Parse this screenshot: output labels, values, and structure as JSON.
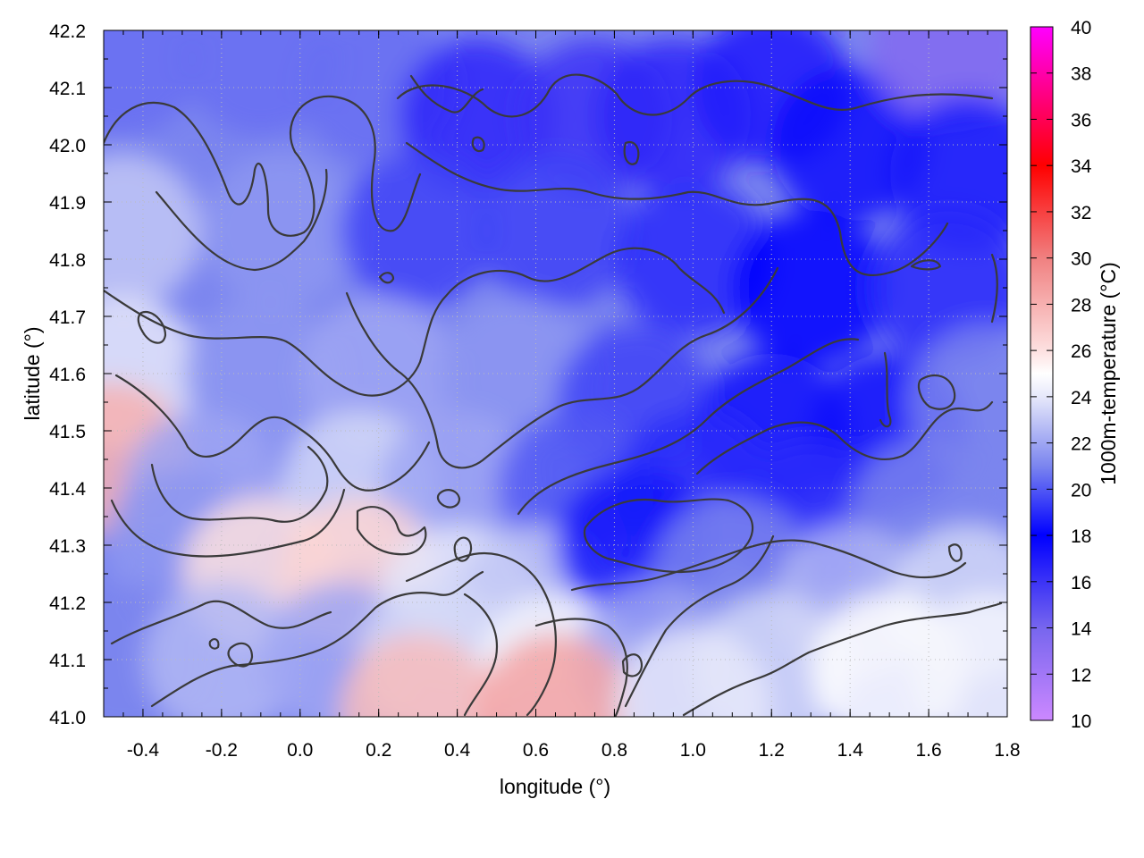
{
  "chart_data": {
    "type": "heatmap",
    "title": "",
    "xlabel": "longitude (°)",
    "ylabel": "latitude (°)",
    "colorbar_label": "1000m-temperature (°C)",
    "xlim": [
      -0.5,
      1.8
    ],
    "ylim": [
      41.0,
      42.2
    ],
    "clim": [
      10,
      40
    ],
    "x_ticks": [
      "-0.4",
      "-0.2",
      "0.0",
      "0.2",
      "0.4",
      "0.6",
      "0.8",
      "1.0",
      "1.2",
      "1.4",
      "1.6",
      "1.8"
    ],
    "x_tick_values": [
      -0.4,
      -0.2,
      0.0,
      0.2,
      0.4,
      0.6,
      0.8,
      1.0,
      1.2,
      1.4,
      1.6,
      1.8
    ],
    "y_ticks": [
      "41.0",
      "41.1",
      "41.2",
      "41.3",
      "41.4",
      "41.5",
      "41.6",
      "41.7",
      "41.8",
      "41.9",
      "42.0",
      "42.1",
      "42.2"
    ],
    "y_tick_values": [
      41.0,
      41.1,
      41.2,
      41.3,
      41.4,
      41.5,
      41.6,
      41.7,
      41.8,
      41.9,
      42.0,
      42.1,
      42.2
    ],
    "colorbar_ticks": [
      "10",
      "12",
      "14",
      "16",
      "18",
      "20",
      "22",
      "24",
      "26",
      "28",
      "30",
      "32",
      "34",
      "36",
      "38",
      "40"
    ],
    "colorbar_tick_values": [
      10,
      12,
      14,
      16,
      18,
      20,
      22,
      24,
      26,
      28,
      30,
      32,
      34,
      36,
      38,
      40
    ],
    "colormap_stops": [
      {
        "value": 10,
        "color": "#cc88ff"
      },
      {
        "value": 14,
        "color": "#7766ee"
      },
      {
        "value": 18,
        "color": "#0000ff"
      },
      {
        "value": 21,
        "color": "#7b85ef"
      },
      {
        "value": 24,
        "color": "#e6e8fa"
      },
      {
        "value": 25,
        "color": "#ffffff"
      },
      {
        "value": 26,
        "color": "#fde0e0"
      },
      {
        "value": 30,
        "color": "#f08080"
      },
      {
        "value": 34,
        "color": "#ff0000"
      },
      {
        "value": 40,
        "color": "#ff00ff"
      }
    ],
    "grid": true,
    "temperature_samples": [
      {
        "lon": -0.45,
        "lat": 42.15,
        "t": 20.5
      },
      {
        "lon": -0.1,
        "lat": 42.15,
        "t": 20.5
      },
      {
        "lon": 0.2,
        "lat": 42.1,
        "t": 20.5
      },
      {
        "lon": 0.45,
        "lat": 42.05,
        "t": 16.5
      },
      {
        "lon": 0.75,
        "lat": 42.05,
        "t": 16.0
      },
      {
        "lon": 0.95,
        "lat": 42.05,
        "t": 16.5
      },
      {
        "lon": 1.2,
        "lat": 42.1,
        "t": 17.0
      },
      {
        "lon": 1.4,
        "lat": 42.0,
        "t": 17.5
      },
      {
        "lon": 1.65,
        "lat": 42.17,
        "t": 13.5
      },
      {
        "lon": 1.7,
        "lat": 41.95,
        "t": 18.5
      },
      {
        "lon": -0.45,
        "lat": 41.85,
        "t": 23.0
      },
      {
        "lon": -0.05,
        "lat": 41.85,
        "t": 21.5
      },
      {
        "lon": 0.3,
        "lat": 41.85,
        "t": 19.5
      },
      {
        "lon": 0.65,
        "lat": 41.85,
        "t": 19.5
      },
      {
        "lon": 1.0,
        "lat": 41.8,
        "t": 19.0
      },
      {
        "lon": 1.3,
        "lat": 41.75,
        "t": 18.0
      },
      {
        "lon": 1.65,
        "lat": 41.75,
        "t": 19.0
      },
      {
        "lon": -0.45,
        "lat": 41.6,
        "t": 24.0
      },
      {
        "lon": -0.1,
        "lat": 41.6,
        "t": 21.5
      },
      {
        "lon": 0.2,
        "lat": 41.6,
        "t": 22.0
      },
      {
        "lon": 0.55,
        "lat": 41.6,
        "t": 21.5
      },
      {
        "lon": 0.85,
        "lat": 41.55,
        "t": 19.5
      },
      {
        "lon": 1.2,
        "lat": 41.5,
        "t": 17.5
      },
      {
        "lon": 1.5,
        "lat": 41.5,
        "t": 17.5
      },
      {
        "lon": 1.75,
        "lat": 41.55,
        "t": 21.0
      },
      {
        "lon": -0.48,
        "lat": 41.45,
        "t": 28.0
      },
      {
        "lon": -0.25,
        "lat": 41.4,
        "t": 22.0
      },
      {
        "lon": 0.15,
        "lat": 41.4,
        "t": 23.5
      },
      {
        "lon": 0.4,
        "lat": 41.4,
        "t": 22.0
      },
      {
        "lon": 0.7,
        "lat": 41.4,
        "t": 20.0
      },
      {
        "lon": 1.0,
        "lat": 41.4,
        "t": 19.0
      },
      {
        "lon": 1.3,
        "lat": 41.35,
        "t": 19.0
      },
      {
        "lon": 1.6,
        "lat": 41.35,
        "t": 21.0
      },
      {
        "lon": -0.3,
        "lat": 41.3,
        "t": 21.5
      },
      {
        "lon": -0.1,
        "lat": 41.25,
        "t": 26.0
      },
      {
        "lon": 0.15,
        "lat": 41.25,
        "t": 26.5
      },
      {
        "lon": 0.4,
        "lat": 41.2,
        "t": 24.0
      },
      {
        "lon": 0.6,
        "lat": 41.2,
        "t": 23.0
      },
      {
        "lon": 0.85,
        "lat": 41.3,
        "t": 18.5
      },
      {
        "lon": 1.1,
        "lat": 41.25,
        "t": 21.0
      },
      {
        "lon": 1.4,
        "lat": 41.2,
        "t": 22.5
      },
      {
        "lon": 1.7,
        "lat": 41.2,
        "t": 23.5
      },
      {
        "lon": -0.45,
        "lat": 41.1,
        "t": 21.0
      },
      {
        "lon": -0.2,
        "lat": 41.1,
        "t": 22.5
      },
      {
        "lon": 0.1,
        "lat": 41.1,
        "t": 22.0
      },
      {
        "lon": 0.35,
        "lat": 41.1,
        "t": 23.5
      },
      {
        "lon": 0.65,
        "lat": 41.08,
        "t": 24.5
      },
      {
        "lon": 0.9,
        "lat": 41.1,
        "t": 22.0
      },
      {
        "lon": 1.2,
        "lat": 41.08,
        "t": 23.5
      },
      {
        "lon": 1.5,
        "lat": 41.08,
        "t": 25.0
      },
      {
        "lon": 1.75,
        "lat": 41.08,
        "t": 24.5
      },
      {
        "lon": 0.3,
        "lat": 41.01,
        "t": 27.5
      },
      {
        "lon": 0.65,
        "lat": 41.01,
        "t": 28.5
      },
      {
        "lon": 1.0,
        "lat": 41.02,
        "t": 24.0
      }
    ]
  }
}
